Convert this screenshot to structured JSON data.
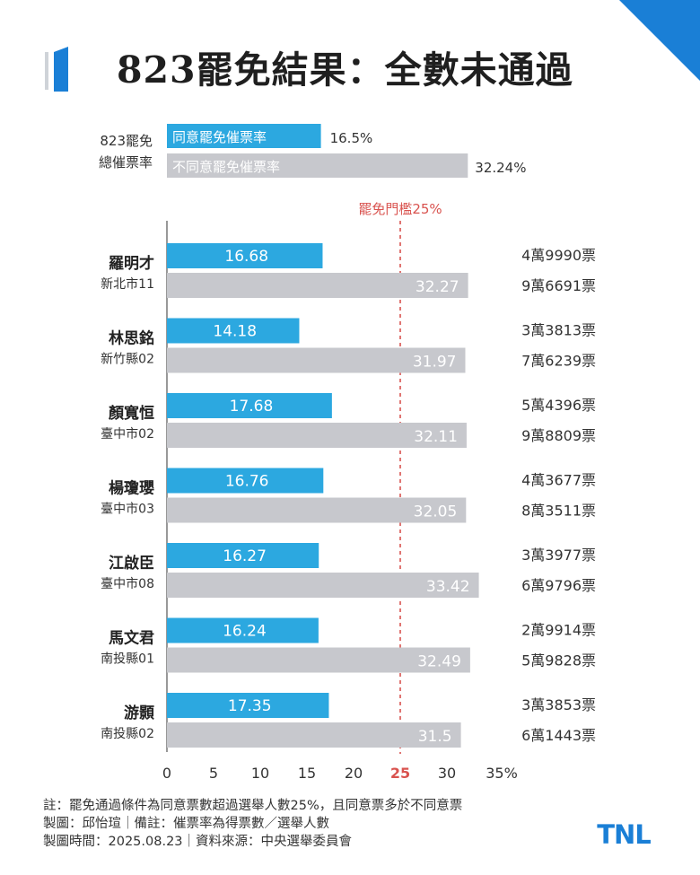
{
  "header": {
    "title": "823罷免結果：全數未通過",
    "accent_color": "#1a7fd6"
  },
  "summary": {
    "label_line1": "823罷免",
    "label_line2": "總催票率",
    "agree_label": "同意罷免催票率",
    "agree_value_text": "16.5%",
    "agree_value": 16.5,
    "disagree_label": "不同意罷免催票率",
    "disagree_value_text": "32.24%",
    "disagree_value": 32.24
  },
  "chart_data": {
    "type": "bar",
    "orientation": "horizontal",
    "title": "823罷免結果：全數未通過",
    "threshold": {
      "value": 25,
      "label": "罷免門檻25%"
    },
    "xlim": [
      0,
      35
    ],
    "x_ticks": [
      "0",
      "5",
      "10",
      "15",
      "20",
      "25",
      "30",
      "35%"
    ],
    "x_tick_values": [
      0,
      5,
      10,
      15,
      20,
      25,
      30,
      35
    ],
    "grid": false,
    "colors": {
      "agree": "#2ca8e0",
      "disagree": "#c7c8cd",
      "threshold": "#d9534f"
    },
    "categories": [
      {
        "name": "羅明才",
        "district": "新北市11",
        "agree": 16.68,
        "disagree": 32.27,
        "agree_label": "16.68",
        "disagree_label": "32.27",
        "agree_votes": "4萬9990票",
        "disagree_votes": "9萬6691票"
      },
      {
        "name": "林思銘",
        "district": "新竹縣02",
        "agree": 14.18,
        "disagree": 31.97,
        "agree_label": "14.18",
        "disagree_label": "31.97",
        "agree_votes": "3萬3813票",
        "disagree_votes": "7萬6239票"
      },
      {
        "name": "顏寬恒",
        "district": "臺中市02",
        "agree": 17.68,
        "disagree": 32.11,
        "agree_label": "17.68",
        "disagree_label": "32.11",
        "agree_votes": "5萬4396票",
        "disagree_votes": "9萬8809票"
      },
      {
        "name": "楊瓊瓔",
        "district": "臺中市03",
        "agree": 16.76,
        "disagree": 32.05,
        "agree_label": "16.76",
        "disagree_label": "32.05",
        "agree_votes": "4萬3677票",
        "disagree_votes": "8萬3511票"
      },
      {
        "name": "江啟臣",
        "district": "臺中市08",
        "agree": 16.27,
        "disagree": 33.42,
        "agree_label": "16.27",
        "disagree_label": "33.42",
        "agree_votes": "3萬3977票",
        "disagree_votes": "6萬9796票"
      },
      {
        "name": "馬文君",
        "district": "南投縣01",
        "agree": 16.24,
        "disagree": 32.49,
        "agree_label": "16.24",
        "disagree_label": "32.49",
        "agree_votes": "2萬9914票",
        "disagree_votes": "5萬9828票"
      },
      {
        "name": "游顥",
        "district": "南投縣02",
        "agree": 17.35,
        "disagree": 31.5,
        "agree_label": "17.35",
        "disagree_label": "31.5",
        "agree_votes": "3萬3853票",
        "disagree_votes": "6萬1443票"
      }
    ]
  },
  "footer": {
    "note": "註：罷免通過條件為同意票數超過選舉人數25%，且同意票多於不同意票",
    "maker": "製圖：邱怡瑄｜備註：催票率為得票數／選舉人數",
    "date_source": "製圖時間：2025.08.23｜資料來源：中央選舉委員會"
  },
  "brand": {
    "logo_text": "TNL"
  }
}
